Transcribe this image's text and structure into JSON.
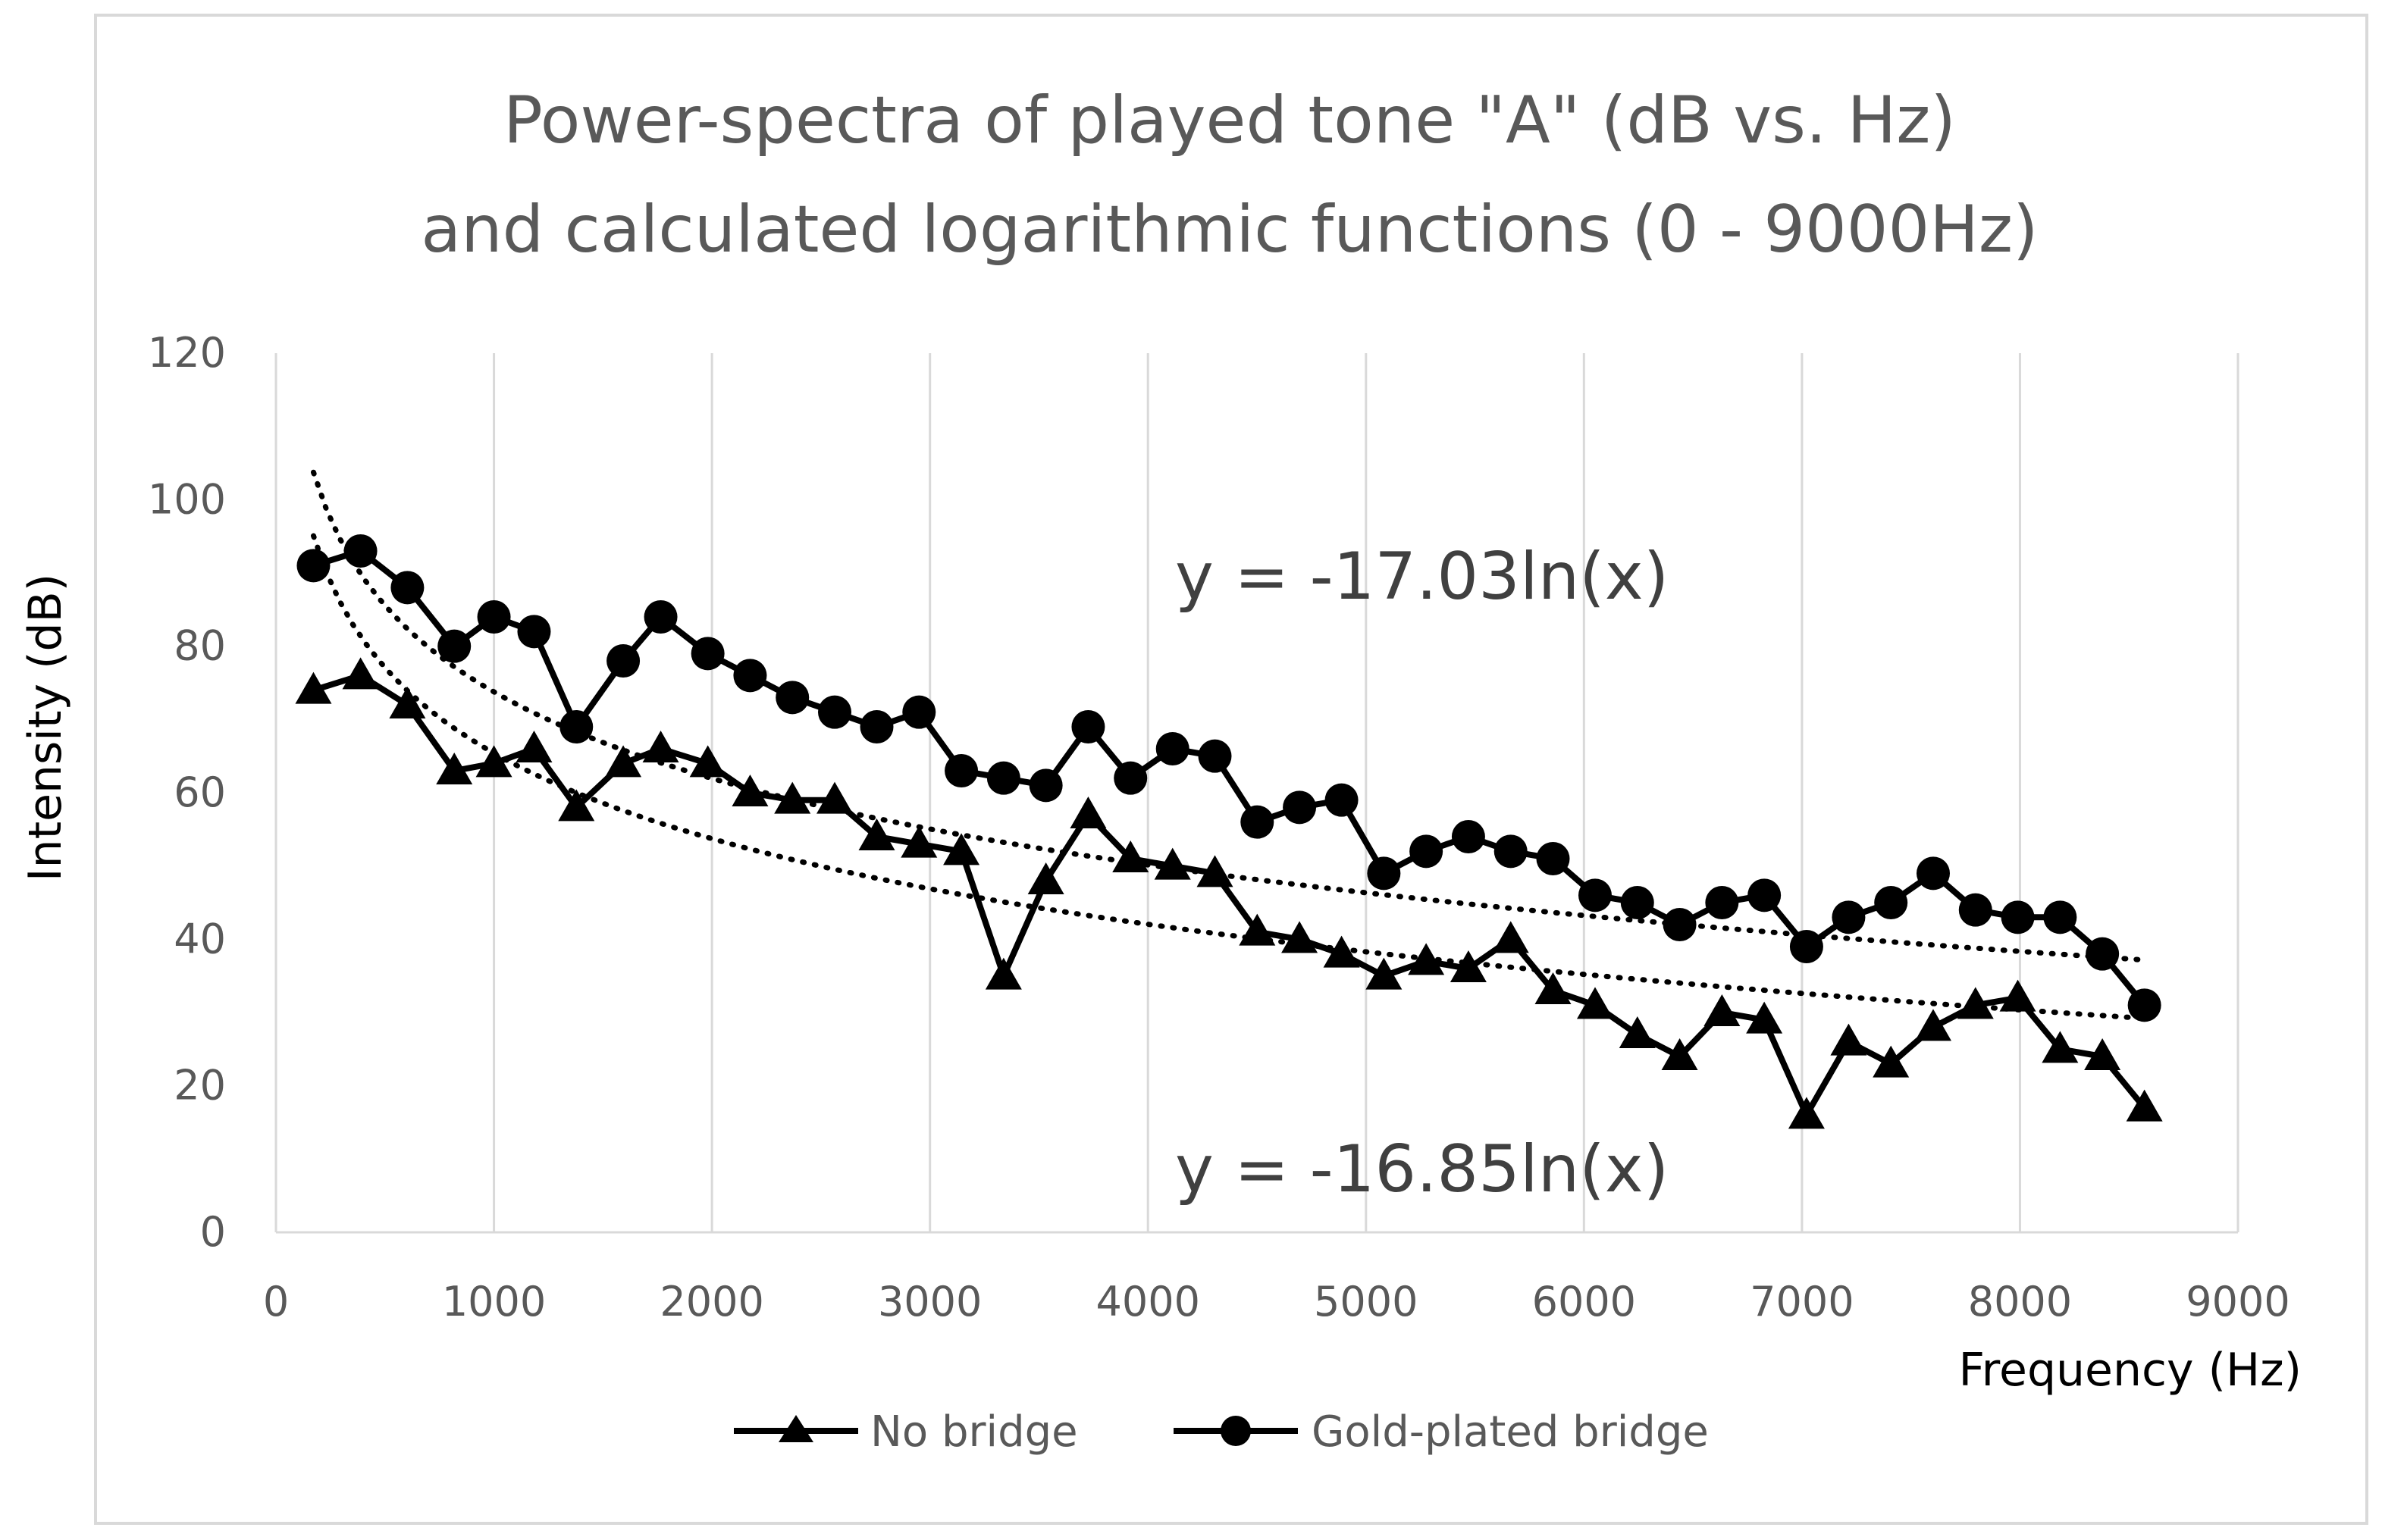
{
  "chart_data": {
    "type": "line",
    "title": [
      "Power-spectra of played tone \"A\" (dB vs. Hz)",
      "and calculated logarithmic functions (0 - 9000Hz)"
    ],
    "xlabel": "Frequency (Hz)",
    "ylabel": "Intensity (dB)",
    "xlim": [
      0,
      9000
    ],
    "ylim": [
      0,
      120
    ],
    "xticks": [
      0,
      1000,
      2000,
      3000,
      4000,
      5000,
      6000,
      7000,
      8000,
      9000
    ],
    "yticks": [
      0,
      20,
      40,
      60,
      80,
      100,
      120
    ],
    "grid": "vertical",
    "legend_position": "bottom",
    "series": [
      {
        "name": "No bridge",
        "marker": "triangle",
        "x": [
          172,
          388,
          603,
          818,
          1000,
          1184,
          1378,
          1593,
          1765,
          1981,
          2175,
          2369,
          2563,
          2756,
          2950,
          3144,
          3338,
          3532,
          3726,
          3920,
          4113,
          4307,
          4501,
          4695,
          4888,
          5082,
          5276,
          5470,
          5664,
          5858,
          6051,
          6245,
          6439,
          6633,
          6827,
          7021,
          7214,
          7408,
          7602,
          7796,
          7990,
          8184,
          8378,
          8571
        ],
        "values": [
          74,
          76,
          72,
          63,
          64,
          66,
          58,
          64,
          66,
          64,
          60,
          59,
          59,
          54,
          53,
          52,
          35,
          48,
          57,
          51,
          50,
          49,
          41,
          40,
          38,
          35,
          37,
          36,
          40,
          33,
          31,
          27,
          24,
          30,
          29,
          16,
          26,
          23,
          28,
          31,
          32,
          25,
          24,
          17
        ]
      },
      {
        "name": "Gold-plated bridge",
        "marker": "circle",
        "x": [
          172,
          388,
          603,
          818,
          1000,
          1184,
          1378,
          1593,
          1765,
          1981,
          2175,
          2369,
          2563,
          2756,
          2950,
          3144,
          3338,
          3532,
          3726,
          3920,
          4113,
          4307,
          4501,
          4695,
          4888,
          5082,
          5276,
          5470,
          5664,
          5858,
          6051,
          6245,
          6439,
          6633,
          6827,
          7021,
          7214,
          7408,
          7602,
          7796,
          7990,
          8184,
          8378,
          8571
        ],
        "values": [
          91,
          93,
          88,
          80,
          84,
          82,
          69,
          78,
          84,
          79,
          76,
          73,
          71,
          69,
          71,
          63,
          62,
          61,
          69,
          62,
          66,
          65,
          56,
          58,
          59,
          49,
          52,
          54,
          52,
          51,
          46,
          45,
          42,
          45,
          46,
          39,
          43,
          45,
          49,
          44,
          43,
          43,
          38,
          31
        ]
      }
    ],
    "trendlines": [
      {
        "series": "Gold-plated bridge",
        "type": "logarithmic",
        "label": "y = -17.03ln(x)",
        "offset": 191.4,
        "coef": -17.03
      },
      {
        "series": "No bridge",
        "type": "logarithmic",
        "label": "y = -16.85ln(x)",
        "offset": 181.8,
        "coef": -16.85
      }
    ]
  }
}
